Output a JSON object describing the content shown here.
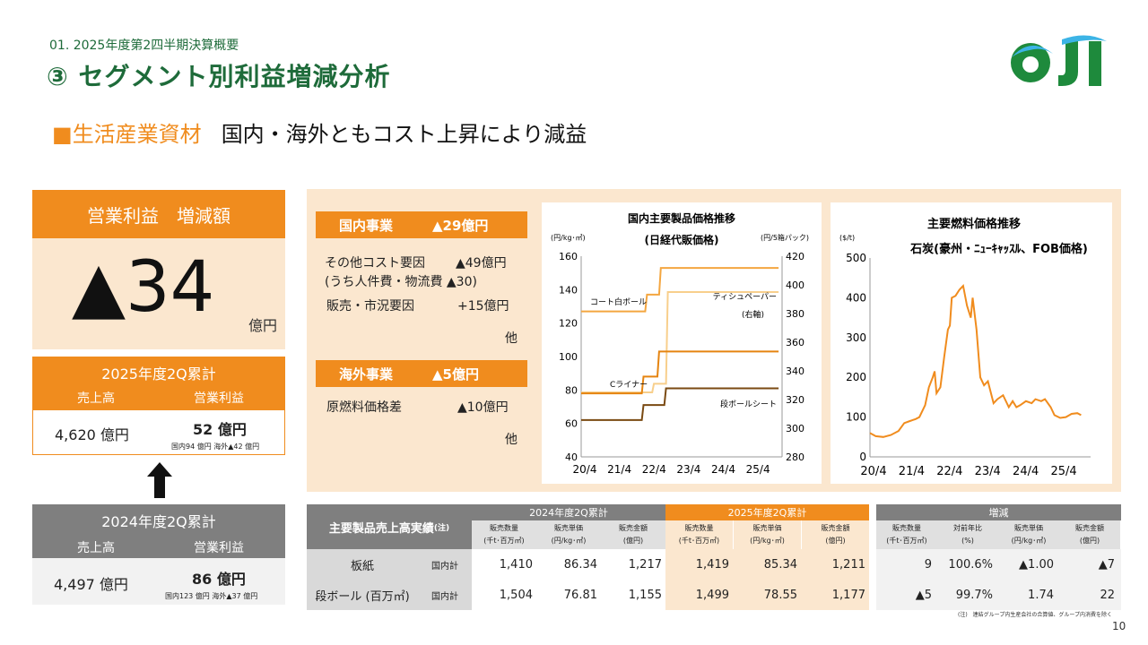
{
  "header": {
    "breadcrumb": "01. 2025年度第2四半期決算概要",
    "title": "③ セグメント別利益増減分析",
    "logo_text": "OJI"
  },
  "subhead": {
    "bullet": "■",
    "segment": "生活産業資材",
    "description": "国内・海外ともコスト上昇により減益"
  },
  "kpi": {
    "label": "営業利益　増減額",
    "value": "▲34",
    "unit": "億円"
  },
  "current": {
    "title": "2025年度2Q累計",
    "col1": "売上高",
    "col2": "営業利益",
    "sales": "4,620 億円",
    "profit": "52 億円",
    "breakdown": "国内94 億円 海外▲42 億円"
  },
  "previous": {
    "title": "2024年度2Q累計",
    "col1": "売上高",
    "col2": "営業利益",
    "sales": "4,497 億円",
    "profit": "86 億円",
    "breakdown": "国内123 億円 海外▲37 億円"
  },
  "domestic": {
    "label": "国内事業",
    "amount": "▲29億円",
    "f1_label": "その他コスト要因",
    "f1_sub": "(うち人件費・物流費 ▲30)",
    "f1_value": "▲49億円",
    "f2_label": "販売・市況要因",
    "f2_value": "+15億円",
    "other": "他"
  },
  "overseas": {
    "label": "海外事業",
    "amount": "▲5億円",
    "f1_label": "原燃料価格差",
    "f1_value": "▲10億円",
    "other": "他"
  },
  "chart_data": [
    {
      "type": "line",
      "title": "国内主要製品価格推移",
      "subtitle": "(日経代販価格)",
      "ylabel_left": "(円/kg･㎡)",
      "ylabel_right": "(円/5箱パック)",
      "right_axis_note": "(右軸)",
      "xticks": [
        "20/4",
        "21/4",
        "22/4",
        "23/4",
        "24/4",
        "25/4"
      ],
      "ylim_left": [
        40,
        160
      ],
      "yticks_left": [
        40,
        60,
        80,
        100,
        120,
        140,
        160
      ],
      "ylim_right": [
        280,
        420
      ],
      "yticks_right": [
        280,
        300,
        320,
        340,
        360,
        380,
        400,
        420
      ],
      "series": [
        {
          "name": "コート白ボール",
          "axis": "left",
          "color": "#f4a640",
          "points": [
            [
              2020.25,
              127
            ],
            [
              2022.1,
              127
            ],
            [
              2022.15,
              137
            ],
            [
              2022.5,
              137
            ],
            [
              2022.55,
              153
            ],
            [
              2025.95,
              153
            ]
          ]
        },
        {
          "name": "ティシュペーパー",
          "axis": "right",
          "color": "#f8cf8c",
          "points": [
            [
              2020.25,
              325
            ],
            [
              2022.3,
              325
            ],
            [
              2022.35,
              331
            ],
            [
              2022.7,
              331
            ],
            [
              2022.75,
              395
            ],
            [
              2025.95,
              395
            ]
          ]
        },
        {
          "name": "Cライナー",
          "axis": "left",
          "color": "#e58410",
          "points": [
            [
              2020.25,
              78
            ],
            [
              2022.0,
              78
            ],
            [
              2022.05,
              88
            ],
            [
              2022.45,
              88
            ],
            [
              2022.5,
              103
            ],
            [
              2025.95,
              103
            ]
          ]
        },
        {
          "name": "段ボールシート",
          "axis": "left",
          "color": "#7a4a12",
          "points": [
            [
              2020.25,
              62
            ],
            [
              2022.0,
              62
            ],
            [
              2022.05,
              71
            ],
            [
              2022.65,
              71
            ],
            [
              2022.7,
              81
            ],
            [
              2025.95,
              81
            ]
          ]
        }
      ]
    },
    {
      "type": "line",
      "title": "主要燃料価格推移",
      "subtitle": "石炭(豪州・ﾆｭｰｷｬｯｽﾙ、FOB価格)",
      "ylabel": "($/t)",
      "xticks": [
        "20/4",
        "21/4",
        "22/4",
        "23/4",
        "24/4",
        "25/4"
      ],
      "ylim": [
        0,
        500
      ],
      "yticks": [
        0,
        100,
        200,
        300,
        400,
        500
      ],
      "series": [
        {
          "name": "石炭",
          "color": "#f08c1e",
          "points": [
            [
              2020.25,
              60
            ],
            [
              2020.4,
              52
            ],
            [
              2020.6,
              50
            ],
            [
              2020.8,
              55
            ],
            [
              2021.0,
              65
            ],
            [
              2021.15,
              85
            ],
            [
              2021.3,
              90
            ],
            [
              2021.45,
              95
            ],
            [
              2021.55,
              100
            ],
            [
              2021.7,
              130
            ],
            [
              2021.8,
              175
            ],
            [
              2021.9,
              200
            ],
            [
              2021.95,
              215
            ],
            [
              2022.0,
              160
            ],
            [
              2022.1,
              175
            ],
            [
              2022.2,
              250
            ],
            [
              2022.3,
              320
            ],
            [
              2022.35,
              330
            ],
            [
              2022.4,
              400
            ],
            [
              2022.5,
              405
            ],
            [
              2022.6,
              420
            ],
            [
              2022.7,
              430
            ],
            [
              2022.8,
              380
            ],
            [
              2022.9,
              350
            ],
            [
              2022.95,
              400
            ],
            [
              2023.05,
              320
            ],
            [
              2023.15,
              200
            ],
            [
              2023.25,
              180
            ],
            [
              2023.35,
              190
            ],
            [
              2023.5,
              135
            ],
            [
              2023.6,
              145
            ],
            [
              2023.75,
              155
            ],
            [
              2023.9,
              125
            ],
            [
              2024.0,
              140
            ],
            [
              2024.1,
              125
            ],
            [
              2024.2,
              130
            ],
            [
              2024.35,
              140
            ],
            [
              2024.5,
              135
            ],
            [
              2024.6,
              145
            ],
            [
              2024.75,
              140
            ],
            [
              2024.85,
              145
            ],
            [
              2025.0,
              125
            ],
            [
              2025.1,
              105
            ],
            [
              2025.25,
              98
            ],
            [
              2025.4,
              100
            ],
            [
              2025.55,
              108
            ],
            [
              2025.7,
              110
            ],
            [
              2025.8,
              105
            ]
          ]
        }
      ]
    }
  ],
  "table": {
    "title": "主要製品売上高実績",
    "title_note": "(注)",
    "group_prev": "2024年度2Q累計",
    "group_cur": "2025年度2Q累計",
    "group_diff": "増減",
    "sub_headers_std": [
      {
        "l1": "販売数量",
        "l2": "(千t･百万㎡)"
      },
      {
        "l1": "販売単価",
        "l2": "(円/kg･㎡)"
      },
      {
        "l1": "販売金額",
        "l2": "(億円)"
      }
    ],
    "sub_headers_diff": [
      {
        "l1": "販売数量",
        "l2": "(千t･百万㎡)"
      },
      {
        "l1": "対前年比",
        "l2": "(%)"
      },
      {
        "l1": "販売単価",
        "l2": "(円/kg･㎡)"
      },
      {
        "l1": "販売金額",
        "l2": "(億円)"
      }
    ],
    "rows": [
      {
        "product": "板紙",
        "scope": "国内計",
        "prev": [
          "1,410",
          "86.34",
          "1,217"
        ],
        "cur": [
          "1,419",
          "85.34",
          "1,211"
        ],
        "diff": [
          "9",
          "100.6%",
          "▲1.00",
          "▲7"
        ]
      },
      {
        "product": "段ボール (百万㎡)",
        "scope": "国内計",
        "prev": [
          "1,504",
          "76.81",
          "1,155"
        ],
        "cur": [
          "1,499",
          "78.55",
          "1,177"
        ],
        "diff": [
          "▲5",
          "99.7%",
          "1.74",
          "22"
        ]
      }
    ],
    "footnote": "(注)　連結グループ内生産会社の合算値、グループ内消費を除く"
  },
  "page_number": "10"
}
